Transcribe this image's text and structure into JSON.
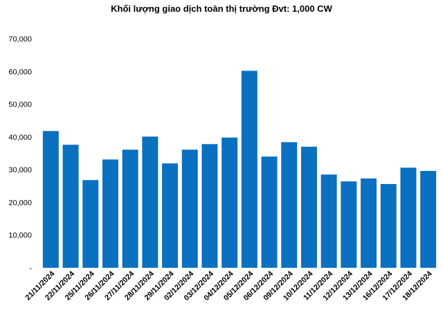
{
  "chart_data": {
    "type": "bar",
    "title": "Khối lượng giao dịch toàn thị trường Đvt: 1,000 CW",
    "xlabel": "",
    "ylabel": "",
    "categories": [
      "21/11/2024",
      "22/11/2024",
      "25/11/2024",
      "26/11/2024",
      "27/11/2024",
      "28/11/2024",
      "29/11/2024",
      "02/12/2024",
      "03/12/2024",
      "04/12/2024",
      "05/12/2024",
      "06/12/2024",
      "09/12/2024",
      "10/12/2024",
      "11/12/2024",
      "12/12/2024",
      "13/12/2024",
      "16/12/2024",
      "17/12/2024",
      "18/12/2024"
    ],
    "values": [
      41800,
      37600,
      26800,
      33100,
      36100,
      40100,
      31900,
      36100,
      37800,
      39800,
      60200,
      34000,
      38400,
      37000,
      28500,
      26400,
      27300,
      25600,
      30600,
      29600
    ],
    "ylim": [
      0,
      70000
    ],
    "yticks": [
      0,
      10000,
      20000,
      30000,
      40000,
      50000,
      60000,
      70000
    ],
    "ytick_labels": [
      "-",
      "10,000",
      "20,000",
      "30,000",
      "40,000",
      "50,000",
      "60,000",
      "70,000"
    ],
    "grid": false,
    "legend": "none",
    "bar_color": "#0a70c0"
  }
}
